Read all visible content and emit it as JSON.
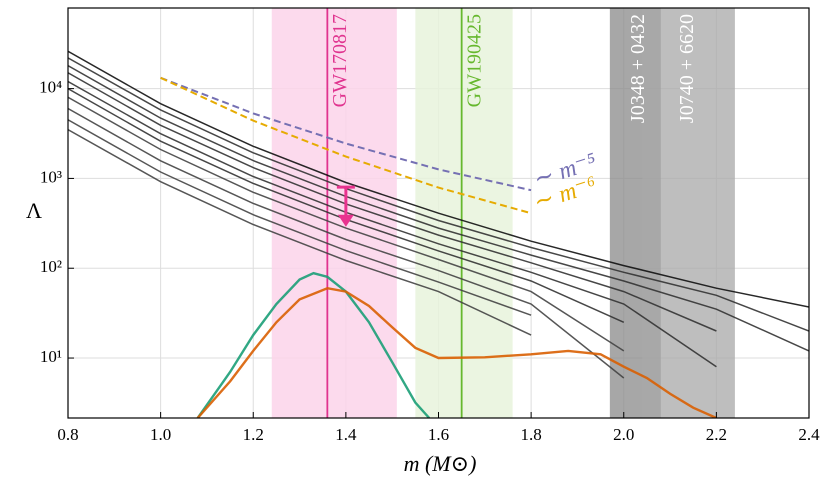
{
  "chart_data": {
    "type": "line",
    "x_label": "m (M⊙)",
    "y_label": "Λ",
    "xlim": [
      0.8,
      2.4
    ],
    "xticks": [
      0.8,
      {
        "value": 1,
        "label": "1.0"
      },
      1.2,
      1.4,
      1.6,
      1.8,
      {
        "value": 2,
        "label": "2.0"
      },
      2.2,
      2.4
    ],
    "ylim": [
      2.15,
      79000
    ],
    "log_y": true,
    "yticks": [
      {
        "value": 10,
        "label": "10¹"
      },
      {
        "value": 100,
        "label": "10²"
      },
      {
        "value": 1000,
        "label": "10³"
      },
      {
        "value": 10000,
        "label": "10⁴"
      }
    ],
    "grid": true,
    "bands": [
      {
        "label": "GW170817",
        "range": [
          1.24,
          1.51
        ],
        "color": "#fbd3ea",
        "line": 1.36,
        "line_color": "#e0338f",
        "text_color": "#e0338f"
      },
      {
        "label": "GW190425",
        "range": [
          1.55,
          1.76
        ],
        "color": "#e8f3dc",
        "line": 1.65,
        "line_color": "#66b82e",
        "text_color": "#66b82e"
      },
      {
        "label": "J0348 + 0432",
        "range": [
          1.97,
          2.08
        ],
        "color": "#8a8a8a",
        "text_color": "#ffffff"
      },
      {
        "label": "J0740 + 6620",
        "range": [
          2.04,
          2.24
        ],
        "color": "#a8a8a8",
        "text_color": "#ffffff"
      }
    ],
    "upper_limit": {
      "x": 1.4,
      "value": 800,
      "bottom": 290,
      "color": "#e8338f"
    },
    "series": [
      {
        "color": "#111111",
        "x": [
          0.8,
          1.0,
          1.2,
          1.4,
          1.6,
          1.8,
          2.0,
          2.2,
          2.4
        ],
        "values": [
          26000,
          6800,
          2280,
          900,
          410,
          200,
          107,
          60,
          37
        ]
      },
      {
        "color": "#333333",
        "x": [
          0.8,
          1.0,
          1.2,
          1.4,
          1.6,
          1.8,
          2.0,
          2.2,
          2.4
        ],
        "values": [
          22000,
          5800,
          1930,
          770,
          340,
          170,
          90,
          50,
          20
        ]
      },
      {
        "color": "#333333",
        "x": [
          0.8,
          1.0,
          1.2,
          1.4,
          1.6,
          1.8,
          2.0,
          2.2,
          2.4
        ],
        "values": [
          18000,
          4700,
          1580,
          630,
          280,
          140,
          72,
          35,
          12
        ]
      },
      {
        "color": "#333333",
        "x": [
          0.8,
          1.0,
          1.2,
          1.4,
          1.6,
          1.8,
          2.0,
          2.2,
          2.4
        ],
        "values": [
          15000,
          3900,
          1320,
          520,
          234,
          115,
          55,
          20,
          null
        ]
      },
      {
        "color": "#333333",
        "x": [
          0.8,
          1.0,
          1.2,
          1.4,
          1.6,
          1.8,
          2.0,
          2.2,
          2.4
        ],
        "values": [
          12000,
          3150,
          1050,
          420,
          187,
          90,
          40,
          8,
          null
        ]
      },
      {
        "color": "#333333",
        "x": [
          0.8,
          1.0,
          1.2,
          1.4,
          1.6,
          1.8,
          2.0,
          2.2,
          2.4
        ],
        "values": [
          10000,
          2600,
          880,
          350,
          156,
          72,
          25,
          null,
          null
        ]
      },
      {
        "color": "#444444",
        "x": [
          0.8,
          1.0,
          1.2,
          1.4,
          1.6,
          1.8,
          2.0,
          2.2,
          2.4
        ],
        "values": [
          8000,
          2100,
          700,
          280,
          125,
          55,
          12,
          null,
          null
        ]
      },
      {
        "color": "#444444",
        "x": [
          0.8,
          1.0,
          1.2,
          1.4,
          1.6,
          1.8,
          2.0,
          2.2,
          2.4
        ],
        "values": [
          6000,
          1570,
          527,
          209,
          94,
          40,
          6,
          null,
          null
        ]
      },
      {
        "color": "#444444",
        "x": [
          0.8,
          1.0,
          1.2,
          1.4,
          1.6,
          1.8,
          2.0,
          2.2,
          2.4
        ],
        "values": [
          4500,
          1180,
          395,
          157,
          70,
          30,
          null,
          null,
          null
        ]
      },
      {
        "color": "#444444",
        "x": [
          0.8,
          1.0,
          1.2,
          1.4,
          1.6,
          1.8,
          2.0,
          2.2,
          2.4
        ],
        "values": [
          3500,
          920,
          307,
          122,
          55,
          18,
          null,
          null,
          null
        ]
      },
      {
        "color": "#7570b3",
        "dashed": true,
        "label": "∼ m⁻⁵",
        "x": [
          1.0,
          1.2,
          1.4,
          1.6,
          1.8
        ],
        "values": [
          13200,
          5300,
          2450,
          1260,
          740
        ]
      },
      {
        "color": "#e6ab02",
        "dashed": true,
        "label": "∼ m⁻⁶",
        "x": [
          1.0,
          1.2,
          1.4,
          1.6,
          1.8
        ],
        "values": [
          13200,
          4400,
          1750,
          790,
          410
        ]
      },
      {
        "color": "#1b9e77",
        "x": [
          1.08,
          1.15,
          1.2,
          1.25,
          1.3,
          1.33,
          1.36,
          1.4,
          1.45,
          1.5,
          1.55,
          1.58
        ],
        "values": [
          2.15,
          7,
          18,
          40,
          75,
          88,
          80,
          55,
          25,
          9,
          3.2,
          2.15
        ]
      },
      {
        "color": "#d95f02",
        "x": [
          1.08,
          1.15,
          1.2,
          1.25,
          1.3,
          1.36,
          1.4,
          1.45,
          1.5,
          1.55,
          1.6,
          1.7,
          1.8,
          1.88,
          1.95,
          2.0,
          2.05,
          2.1,
          2.15,
          2.2
        ],
        "values": [
          2.15,
          5.5,
          12,
          25,
          45,
          60,
          55,
          38,
          22,
          13,
          10,
          10.2,
          11,
          12,
          11,
          8,
          6,
          4,
          2.8,
          2.15
        ]
      }
    ]
  }
}
